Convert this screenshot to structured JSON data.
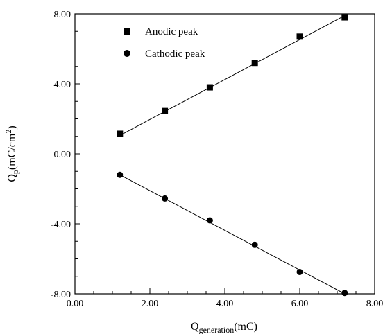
{
  "chart_data": {
    "type": "scatter",
    "x_label_main": "Q",
    "x_label_sub": "generation",
    "x_label_unit": "(mC)",
    "y_label_main": "Q",
    "y_label_sub": "p",
    "y_label_unit": "(mC/cm",
    "y_label_sup": "2",
    "y_label_close": ")",
    "xlim": [
      0,
      8
    ],
    "ylim": [
      -8,
      8
    ],
    "x_ticks": [
      0,
      2,
      4,
      6,
      8
    ],
    "x_tick_labels": [
      "0.00",
      "2.00",
      "4.00",
      "6.00",
      "8.00"
    ],
    "y_ticks": [
      -8,
      -4,
      0,
      4,
      8
    ],
    "y_tick_labels": [
      "-8.00",
      "-4.00",
      "0.00",
      "4.00",
      "8.00"
    ],
    "grid": false,
    "legend_position": "top-left",
    "series": [
      {
        "name": "Anodic peak",
        "marker": "square",
        "x": [
          1.2,
          2.4,
          3.6,
          4.8,
          6.0,
          7.2
        ],
        "y": [
          1.15,
          2.45,
          3.8,
          5.2,
          6.7,
          7.8
        ],
        "fit_line": [
          [
            1.2,
            1.05
          ],
          [
            7.2,
            7.9
          ]
        ]
      },
      {
        "name": "Cathodic peak",
        "marker": "circle",
        "x": [
          1.2,
          2.4,
          3.6,
          4.8,
          6.0,
          7.2
        ],
        "y": [
          -1.2,
          -2.55,
          -3.8,
          -5.2,
          -6.75,
          -7.95
        ],
        "fit_line": [
          [
            1.2,
            -1.2
          ],
          [
            7.2,
            -8.0
          ]
        ]
      }
    ]
  }
}
